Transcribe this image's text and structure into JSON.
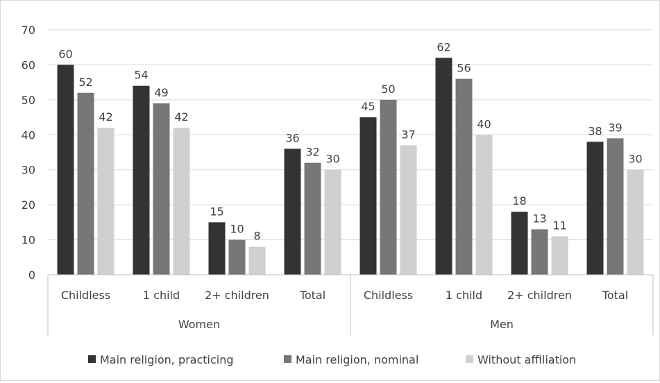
{
  "chart_data": {
    "type": "bar",
    "title": "",
    "xlabel": "",
    "ylabel": "",
    "ylim": [
      0,
      70
    ],
    "yticks": [
      0,
      10,
      20,
      30,
      40,
      50,
      60,
      70
    ],
    "grid": true,
    "legend_position": "bottom",
    "groups": [
      {
        "label": "Women",
        "categories": [
          "Childless",
          "1 child",
          "2+ children",
          "Total"
        ]
      },
      {
        "label": "Men",
        "categories": [
          "Childless",
          "1 child",
          "2+ children",
          "Total"
        ]
      }
    ],
    "series": [
      {
        "name": "Main religion, practicing",
        "color": "#333333",
        "values": [
          60,
          54,
          15,
          36,
          45,
          62,
          18,
          38
        ]
      },
      {
        "name": "Main religion, nominal",
        "color": "#777777",
        "values": [
          52,
          49,
          10,
          32,
          50,
          56,
          13,
          39
        ]
      },
      {
        "name": "Without affiliation",
        "color": "#d0d0d0",
        "values": [
          42,
          42,
          8,
          30,
          37,
          40,
          11,
          30
        ]
      }
    ],
    "gridline_color": "#d9d9d9",
    "axis_color": "#bfbfbf"
  }
}
